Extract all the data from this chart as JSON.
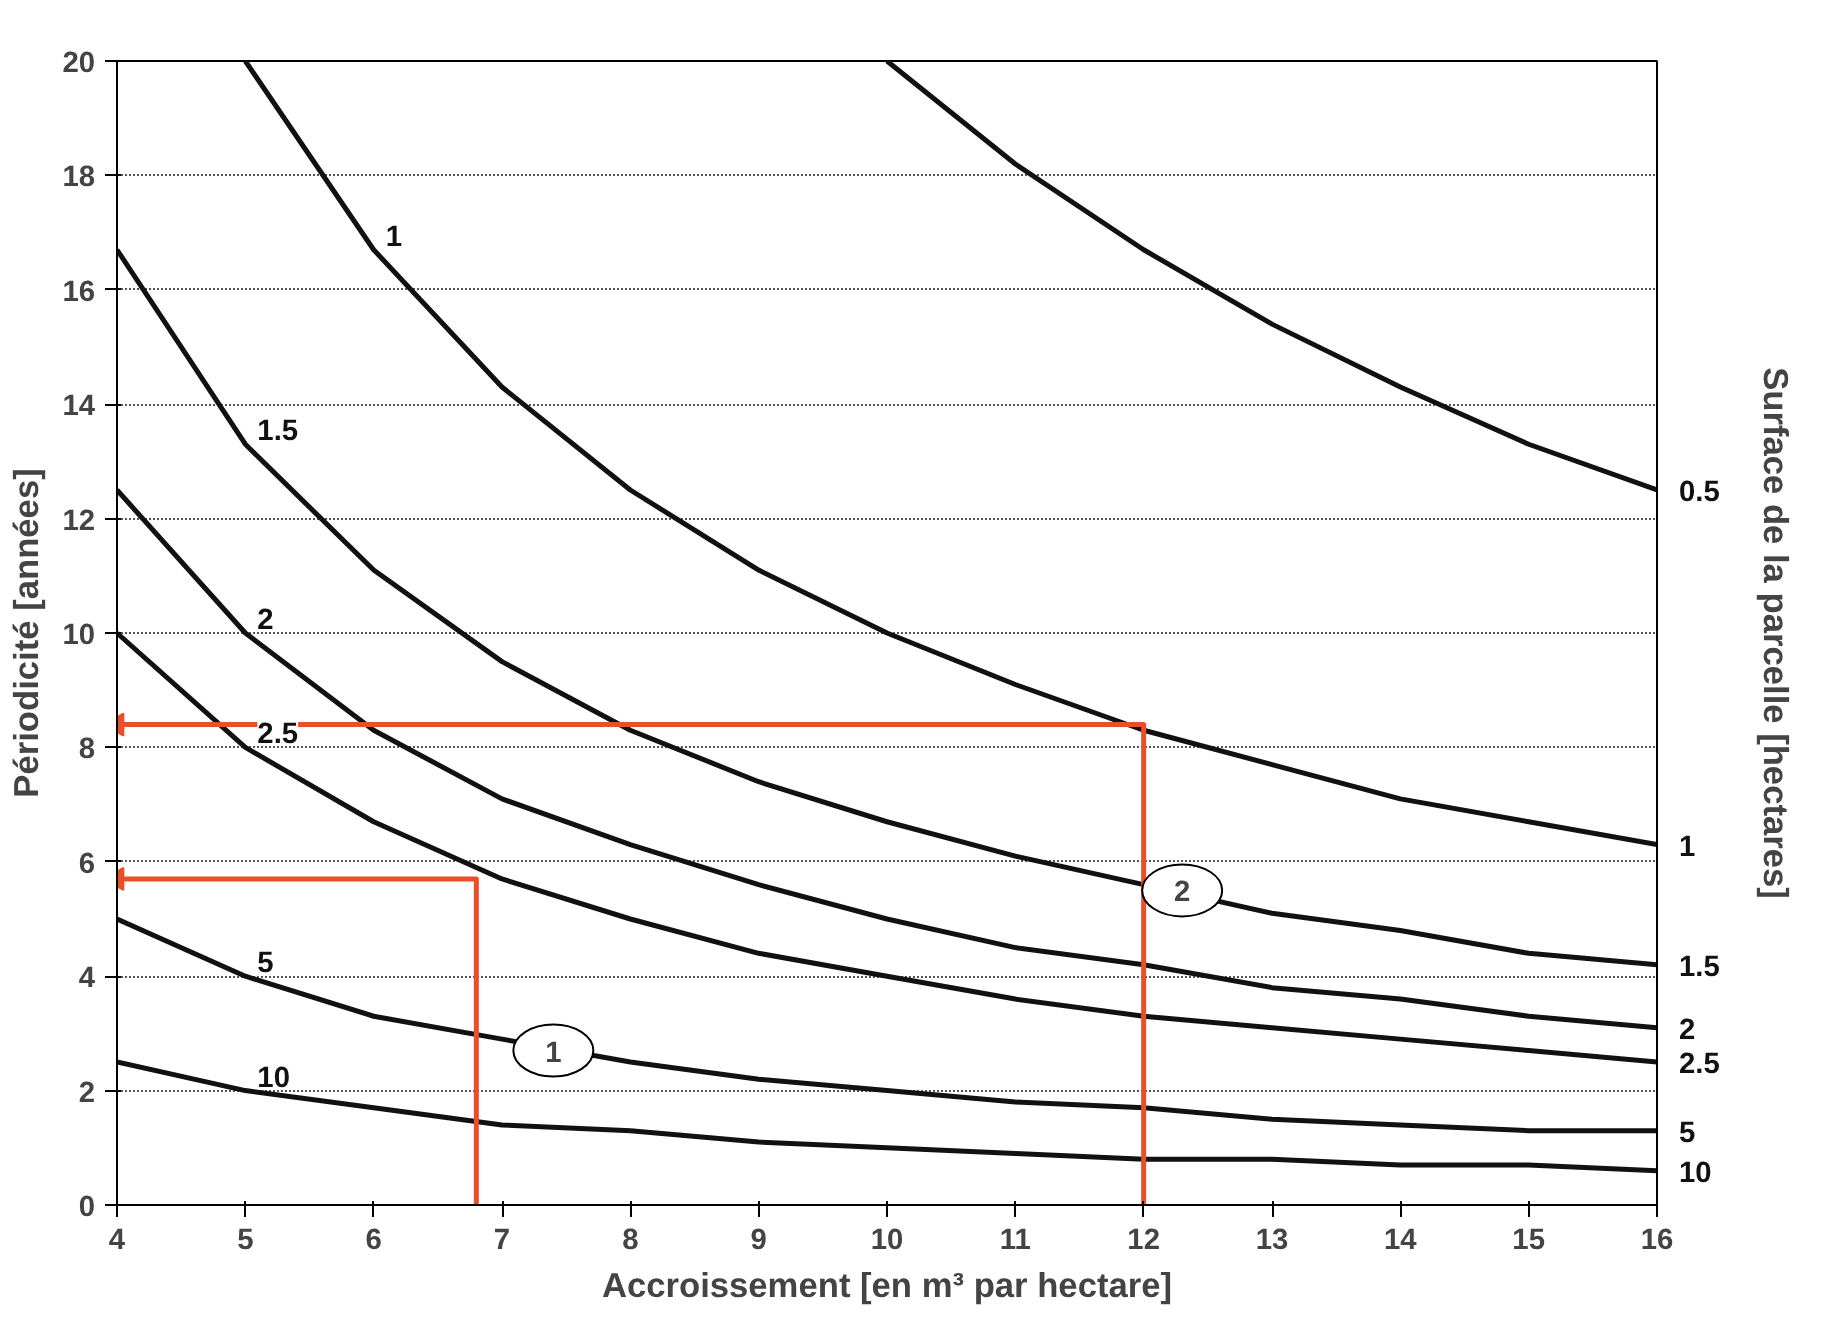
{
  "chart_data": {
    "type": "line",
    "xlabel": "Accroissement [en m³ par hectare]",
    "ylabel": "Périodicité [années]",
    "y2label": "Surface de la parcelle [hectares]",
    "xlim": [
      4,
      16
    ],
    "ylim": [
      0,
      20
    ],
    "xticks": [
      4,
      5,
      6,
      7,
      8,
      9,
      10,
      11,
      12,
      13,
      14,
      15,
      16
    ],
    "yticks": [
      0,
      2,
      4,
      6,
      8,
      10,
      12,
      14,
      16,
      18,
      20
    ],
    "grid": "y",
    "marker": "none",
    "line_style": "solid",
    "series": [
      {
        "name": "0.5",
        "color": "#111111",
        "x": [
          10,
          11,
          12,
          13,
          14,
          15,
          16
        ],
        "values": [
          20,
          18.2,
          16.7,
          15.4,
          14.3,
          13.3,
          12.5
        ]
      },
      {
        "name": "1",
        "color": "#111111",
        "x": [
          5,
          6,
          7,
          8,
          9,
          10,
          11,
          12,
          13,
          14,
          15,
          16
        ],
        "values": [
          20,
          16.7,
          14.3,
          12.5,
          11.1,
          10,
          9.1,
          8.3,
          7.7,
          7.1,
          6.7,
          6.3
        ]
      },
      {
        "name": "1.5",
        "color": "#111111",
        "x": [
          4,
          5,
          6,
          7,
          8,
          9,
          10,
          11,
          12,
          13,
          14,
          15,
          16
        ],
        "values": [
          16.7,
          13.3,
          11.1,
          9.5,
          8.3,
          7.4,
          6.7,
          6.1,
          5.6,
          5.1,
          4.8,
          4.4,
          4.2
        ]
      },
      {
        "name": "2",
        "color": "#111111",
        "x": [
          4,
          5,
          6,
          7,
          8,
          9,
          10,
          11,
          12,
          13,
          14,
          15,
          16
        ],
        "values": [
          12.5,
          10,
          8.3,
          7.1,
          6.3,
          5.6,
          5,
          4.5,
          4.2,
          3.8,
          3.6,
          3.3,
          3.1
        ]
      },
      {
        "name": "2.5",
        "color": "#111111",
        "x": [
          4,
          5,
          6,
          7,
          8,
          9,
          10,
          11,
          12,
          13,
          14,
          15,
          16
        ],
        "values": [
          10,
          8,
          6.7,
          5.7,
          5,
          4.4,
          4,
          3.6,
          3.3,
          3.1,
          2.9,
          2.7,
          2.5
        ]
      },
      {
        "name": "5",
        "color": "#111111",
        "x": [
          4,
          5,
          6,
          7,
          8,
          9,
          10,
          11,
          12,
          13,
          14,
          15,
          16
        ],
        "values": [
          5,
          4,
          3.3,
          2.9,
          2.5,
          2.2,
          2,
          1.8,
          1.7,
          1.5,
          1.4,
          1.3,
          1.3
        ]
      },
      {
        "name": "10",
        "color": "#111111",
        "x": [
          4,
          5,
          6,
          7,
          8,
          9,
          10,
          11,
          12,
          13,
          14,
          15,
          16
        ],
        "values": [
          2.5,
          2,
          1.7,
          1.4,
          1.3,
          1.1,
          1,
          0.9,
          0.8,
          0.8,
          0.7,
          0.7,
          0.6
        ]
      },
      {
        "color": "#e8502a",
        "x": [
          6.8,
          6.8,
          4
        ],
        "values": [
          0,
          5.7,
          5.7
        ]
      },
      {
        "color": "#e8502a",
        "x": [
          12,
          12,
          4
        ],
        "values": [
          0,
          8.4,
          8.4
        ]
      }
    ],
    "annotations": [
      {
        "text": "1",
        "x": 7.4,
        "y": 2.7
      },
      {
        "text": "2",
        "x": 12.3,
        "y": 5.5
      }
    ]
  }
}
